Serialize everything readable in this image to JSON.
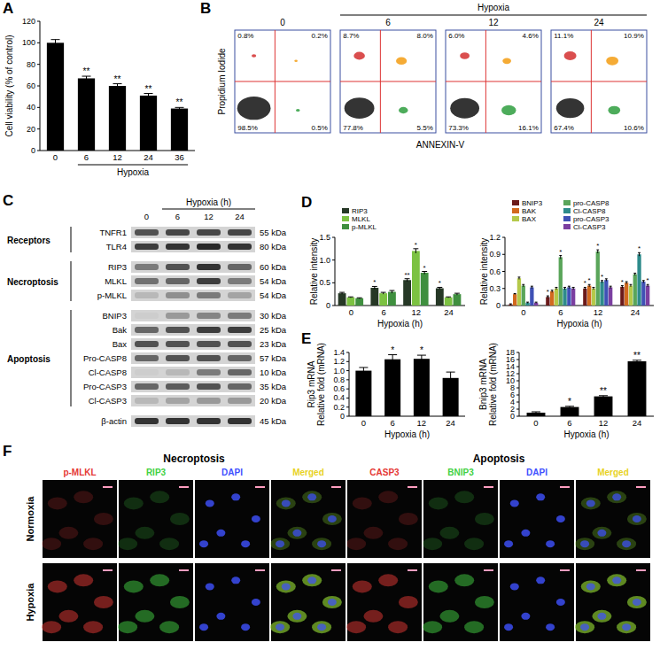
{
  "chart_data": [
    {
      "panel": "A",
      "type": "bar",
      "y_label": "Cell viability (% of control)",
      "x_label": "Hypoxia",
      "categories": [
        "0",
        "6",
        "12",
        "24",
        "36"
      ],
      "values": [
        100,
        67,
        60,
        51,
        39
      ],
      "errors": [
        3,
        2,
        2,
        2,
        1
      ],
      "significance": [
        null,
        "**",
        "**",
        "**",
        "**"
      ],
      "color": "#000000",
      "ylim": [
        0,
        120
      ],
      "yticks": [
        0,
        20,
        40,
        60,
        80,
        100,
        120
      ]
    },
    {
      "panel": "D",
      "type": "bar",
      "y_label": "Relative intensity",
      "x_label": "Hypoxia (h)",
      "categories": [
        "0",
        "6",
        "12",
        "24"
      ],
      "legend": "top",
      "ylim": [
        0,
        1.5
      ],
      "yticks": [
        0,
        0.5,
        {
          "value": 1,
          "label": "1.0"
        },
        1.5
      ],
      "series": [
        {
          "name": "RIP3",
          "color": "#263826",
          "values": [
            0.27,
            0.39,
            0.56,
            0.38
          ],
          "errors": [
            0.02,
            0.03,
            0.03,
            0.02
          ],
          "significance": [
            null,
            "*",
            "**",
            "*"
          ]
        },
        {
          "name": "MLKL",
          "color": "#7cc242",
          "values": [
            0.18,
            0.27,
            1.2,
            0.18
          ],
          "errors": [
            0.01,
            0.02,
            0.05,
            0.01
          ],
          "significance": [
            null,
            null,
            "*",
            null
          ]
        },
        {
          "name": "p-MLKL",
          "color": "#3f8f3f",
          "values": [
            0.16,
            0.3,
            0.72,
            0.25
          ],
          "errors": [
            0.01,
            0.03,
            0.03,
            0.02
          ],
          "significance": [
            null,
            null,
            "*",
            null
          ]
        }
      ]
    },
    {
      "type": "bar",
      "y_label": "Relative intensity",
      "x_label": "Hypoxia (h)",
      "categories": [
        "0",
        "6",
        "12",
        "24"
      ],
      "legend": "top",
      "ylim": [
        0,
        1.2
      ],
      "yticks": [
        0,
        0.3,
        0.6,
        0.9,
        1.2
      ],
      "series": [
        {
          "name": "BNIP3",
          "color": "#6b1a1a",
          "values": [
            0.02,
            0.15,
            0.3,
            0.33
          ],
          "errors": [
            0.01,
            0.02,
            0.02,
            0.02
          ],
          "significance": [
            null,
            "*",
            "*",
            "*"
          ]
        },
        {
          "name": "BAK",
          "color": "#d2691e",
          "values": [
            0.2,
            0.25,
            0.35,
            0.4
          ],
          "errors": [
            0.01,
            0.02,
            0.02,
            0.02
          ],
          "significance": [
            null,
            null,
            "*",
            null
          ]
        },
        {
          "name": "BAX",
          "color": "#b5c94a",
          "values": [
            0.48,
            0.3,
            0.3,
            0.35
          ],
          "errors": [
            0.02,
            0.02,
            0.02,
            0.02
          ],
          "significance": [
            null,
            null,
            null,
            null
          ]
        },
        {
          "name": "pro-CASP8",
          "color": "#5aa55a",
          "values": [
            0.35,
            0.85,
            0.95,
            0.55
          ],
          "errors": [
            0.02,
            0.03,
            0.03,
            0.02
          ],
          "significance": [
            null,
            "*",
            "*",
            null
          ]
        },
        {
          "name": "Cl-CASP8",
          "color": "#2e8b8b",
          "values": [
            0.05,
            0.3,
            0.42,
            0.9
          ],
          "errors": [
            0.01,
            0.02,
            0.02,
            0.03
          ],
          "significance": [
            null,
            null,
            "*",
            "*"
          ]
        },
        {
          "name": "pro-CASP3",
          "color": "#3f51b5",
          "values": [
            0.32,
            0.32,
            0.45,
            0.42
          ],
          "errors": [
            0.02,
            0.02,
            0.02,
            0.02
          ],
          "significance": [
            null,
            null,
            null,
            null
          ]
        },
        {
          "name": "Cl-CASP3",
          "color": "#7b3fa0",
          "values": [
            0.05,
            0.3,
            0.32,
            0.35
          ],
          "errors": [
            0.01,
            0.02,
            0.02,
            0.02
          ],
          "significance": [
            null,
            null,
            null,
            "*"
          ]
        }
      ]
    },
    {
      "panel": "E",
      "type": "bar",
      "y_label": [
        "Rip3 mRNA",
        "Relative fold (mRNA)"
      ],
      "x_label": "Hypoxia (h)",
      "categories": [
        "0",
        "6",
        "12",
        "24"
      ],
      "values": [
        1.0,
        1.25,
        1.26,
        0.84
      ],
      "errors": [
        0.07,
        0.1,
        0.08,
        0.13
      ],
      "significance": [
        null,
        "*",
        "*",
        null
      ],
      "color": "#000000",
      "ylim": [
        0,
        1.4
      ],
      "yticks": [
        0,
        0.2,
        0.4,
        0.6,
        0.8,
        {
          "value": 1,
          "label": "1.0"
        },
        1.2,
        1.4
      ]
    },
    {
      "type": "bar",
      "y_label": [
        "Bnip3 mRNA",
        "Relative fold (mRNA)"
      ],
      "x_label": "Hypoxia (h)",
      "categories": [
        "0",
        "6",
        "12",
        "24"
      ],
      "values": [
        1.0,
        2.6,
        5.6,
        15.5
      ],
      "errors": [
        0.25,
        0.2,
        0.2,
        0.3
      ],
      "significance": [
        null,
        "*",
        "**",
        "**"
      ],
      "color": "#000000",
      "ylim": [
        0,
        18
      ],
      "yticks": [
        0,
        2,
        4,
        6,
        8,
        10,
        12,
        14,
        16,
        18
      ]
    }
  ],
  "flow_cytometry": {
    "panel": "B",
    "header": "Hypoxia",
    "y_label": "Propidium Iodide",
    "x_label": "ANNEXIN-V",
    "plots": [
      {
        "time": "0",
        "upper_left": {
          "value": 0.8,
          "label": "0.8%"
        },
        "upper_right": {
          "value": 0.2,
          "label": "0.2%"
        },
        "lower_left": {
          "value": 98.5,
          "label": "98.5%"
        },
        "lower_right": {
          "value": 0.5,
          "label": "0.5%"
        }
      },
      {
        "time": "6",
        "upper_left": {
          "value": 8.7,
          "label": "8.7%"
        },
        "upper_right": {
          "value": 8.0,
          "label": "8.0%"
        },
        "lower_left": {
          "value": 77.8,
          "label": "77.8%"
        },
        "lower_right": {
          "value": 5.5,
          "label": "5.5%"
        }
      },
      {
        "time": "12",
        "upper_left": {
          "value": 6.0,
          "label": "6.0%"
        },
        "upper_right": {
          "value": 4.6,
          "label": "4.6%"
        },
        "lower_left": {
          "value": 73.3,
          "label": "73.3%"
        },
        "lower_right": {
          "value": 16.1,
          "label": "16.1%"
        }
      },
      {
        "time": "24",
        "upper_left": {
          "value": 11.1,
          "label": "11.1%"
        },
        "upper_right": {
          "value": 10.9,
          "label": "10.9%"
        },
        "lower_left": {
          "value": 67.4,
          "label": "67.4%"
        },
        "lower_right": {
          "value": 10.6,
          "label": "10.6%"
        }
      }
    ]
  },
  "western_blot": {
    "panel": "C",
    "header": "Hypoxia (h)",
    "lanes": [
      "0",
      "6",
      "12",
      "24"
    ],
    "groups": [
      {
        "label": "Receptors",
        "rows": [
          {
            "label": "TNFR1",
            "size": "55 kDa",
            "bands": [
              0.7,
              0.75,
              0.75,
              0.75
            ]
          },
          {
            "label": "TLR4",
            "size": "80 kDa",
            "bands": [
              0.8,
              0.85,
              0.9,
              0.85
            ]
          }
        ]
      },
      {
        "label": "Necroptosis",
        "rows": [
          {
            "label": "RIP3",
            "size": "60 kDa",
            "bands": [
              0.5,
              0.7,
              0.85,
              0.6
            ]
          },
          {
            "label": "MLKL",
            "size": "54 kDa",
            "bands": [
              0.55,
              0.6,
              0.8,
              0.5
            ]
          },
          {
            "label": "p-MLKL",
            "size": "54 kDa",
            "bands": [
              0.2,
              0.4,
              0.5,
              0.3
            ]
          }
        ]
      },
      {
        "label": "Apoptosis",
        "rows": [
          {
            "label": "BNIP3",
            "size": "30 kDa",
            "bands": [
              0.1,
              0.35,
              0.45,
              0.5
            ]
          },
          {
            "label": "Bak",
            "size": "25 kDa",
            "bands": [
              0.6,
              0.7,
              0.8,
              0.8
            ]
          },
          {
            "label": "Bax",
            "size": "23 kDa",
            "bands": [
              0.7,
              0.7,
              0.7,
              0.7
            ]
          },
          {
            "label": "Pro-CASP8",
            "size": "57 kDa",
            "bands": [
              0.6,
              0.7,
              0.7,
              0.6
            ]
          },
          {
            "label": "Cl-CASP8",
            "size": "10 kDa",
            "bands": [
              0.1,
              0.2,
              0.5,
              0.6
            ]
          },
          {
            "label": "Pro-CASP3",
            "size": "35 kDa",
            "bands": [
              0.6,
              0.65,
              0.7,
              0.6
            ]
          },
          {
            "label": "Cl-CASP3",
            "size": "20 kDa",
            "bands": [
              0.2,
              0.3,
              0.35,
              0.35
            ]
          }
        ]
      }
    ],
    "loading_control": {
      "label": "β-actin",
      "size": "45 kDa",
      "bands": [
        0.85,
        0.85,
        0.85,
        0.85
      ]
    }
  },
  "immunofluorescence": {
    "panel": "F",
    "rows": [
      "Normoxia",
      "Hypoxia"
    ],
    "groups": [
      {
        "label": "Necroptosis",
        "columns": [
          {
            "label": "p-MLKL",
            "color": "#e53935"
          },
          {
            "label": "RIP3",
            "color": "#43d143"
          },
          {
            "label": "DAPI",
            "color": "#3f51ff"
          },
          {
            "label": "Merged",
            "color": "#e8d21d"
          }
        ]
      },
      {
        "label": "Apoptosis",
        "columns": [
          {
            "label": "CASP3",
            "color": "#e53935"
          },
          {
            "label": "BNIP3",
            "color": "#43d143"
          },
          {
            "label": "DAPI",
            "color": "#3f51ff"
          },
          {
            "label": "Merged",
            "color": "#e8d21d"
          }
        ]
      }
    ]
  }
}
